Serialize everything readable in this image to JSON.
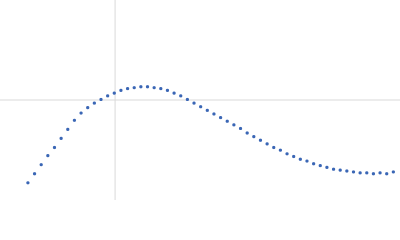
{
  "chart_data": {
    "type": "scatter",
    "color": "#3a66b5",
    "xlim": [
      0,
      6.02
    ],
    "ylim": [
      0,
      2.208
    ],
    "grid_x": [
      1.732
    ],
    "grid_y": [
      1.104
    ],
    "grid_color": "#d9d9d9",
    "x": [
      0.42,
      0.52,
      0.62,
      0.72,
      0.82,
      0.92,
      1.02,
      1.12,
      1.22,
      1.32,
      1.42,
      1.52,
      1.62,
      1.72,
      1.82,
      1.92,
      2.02,
      2.12,
      2.22,
      2.32,
      2.42,
      2.52,
      2.62,
      2.72,
      2.82,
      2.92,
      3.02,
      3.12,
      3.22,
      3.32,
      3.42,
      3.52,
      3.62,
      3.72,
      3.82,
      3.92,
      4.02,
      4.12,
      4.22,
      4.32,
      4.42,
      4.52,
      4.62,
      4.72,
      4.82,
      4.92,
      5.02,
      5.12,
      5.22,
      5.32,
      5.42,
      5.52,
      5.62,
      5.72,
      5.82,
      5.92
    ],
    "values": [
      0.19,
      0.29,
      0.39,
      0.49,
      0.58,
      0.68,
      0.78,
      0.88,
      0.96,
      1.02,
      1.07,
      1.11,
      1.15,
      1.18,
      1.21,
      1.23,
      1.24,
      1.25,
      1.25,
      1.24,
      1.23,
      1.21,
      1.18,
      1.15,
      1.11,
      1.07,
      1.03,
      0.99,
      0.95,
      0.91,
      0.87,
      0.83,
      0.79,
      0.74,
      0.7,
      0.66,
      0.62,
      0.58,
      0.55,
      0.51,
      0.48,
      0.45,
      0.43,
      0.4,
      0.38,
      0.36,
      0.34,
      0.33,
      0.32,
      0.31,
      0.3,
      0.3,
      0.29,
      0.3,
      0.29,
      0.31
    ]
  }
}
